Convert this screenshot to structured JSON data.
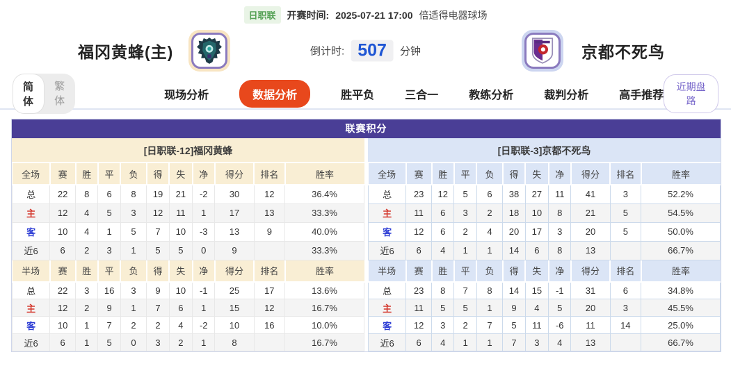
{
  "header": {
    "league_badge": "日职联",
    "kickoff_label": "开赛时间:",
    "kickoff_time": "2025-07-21 17:00",
    "venue": "倍适得电器球场",
    "home_team": "福冈黄蜂(主)",
    "away_team": "京都不死鸟",
    "countdown_label": "倒计时:",
    "countdown_value": "507",
    "countdown_unit": "分钟"
  },
  "nav": {
    "lang_simplified": "简体",
    "lang_traditional": "繁体",
    "tabs": [
      {
        "label": "现场分析",
        "active": false
      },
      {
        "label": "数据分析",
        "active": true
      },
      {
        "label": "胜平负",
        "active": false
      },
      {
        "label": "三合一",
        "active": false
      },
      {
        "label": "教练分析",
        "active": false
      },
      {
        "label": "裁判分析",
        "active": false
      },
      {
        "label": "高手推荐",
        "active": false
      }
    ],
    "recent_button": "近期盘路"
  },
  "table": {
    "title": "联赛积分",
    "full_columns": [
      "全场",
      "赛",
      "胜",
      "平",
      "负",
      "得",
      "失",
      "净",
      "得分",
      "排名",
      "胜率"
    ],
    "half_columns": [
      "半场",
      "赛",
      "胜",
      "平",
      "负",
      "得",
      "失",
      "净",
      "得分",
      "排名",
      "胜率"
    ],
    "home": {
      "team_header": "[日职联-12]福冈黄蜂",
      "full_rows": [
        [
          "总",
          "22",
          "8",
          "6",
          "8",
          "19",
          "21",
          "-2",
          "30",
          "12",
          "36.4%"
        ],
        [
          "主",
          "12",
          "4",
          "5",
          "3",
          "12",
          "11",
          "1",
          "17",
          "13",
          "33.3%"
        ],
        [
          "客",
          "10",
          "4",
          "1",
          "5",
          "7",
          "10",
          "-3",
          "13",
          "9",
          "40.0%"
        ],
        [
          "近6",
          "6",
          "2",
          "3",
          "1",
          "5",
          "5",
          "0",
          "9",
          "",
          "33.3%"
        ]
      ],
      "half_rows": [
        [
          "总",
          "22",
          "3",
          "16",
          "3",
          "9",
          "10",
          "-1",
          "25",
          "17",
          "13.6%"
        ],
        [
          "主",
          "12",
          "2",
          "9",
          "1",
          "7",
          "6",
          "1",
          "15",
          "12",
          "16.7%"
        ],
        [
          "客",
          "10",
          "1",
          "7",
          "2",
          "2",
          "4",
          "-2",
          "10",
          "16",
          "10.0%"
        ],
        [
          "近6",
          "6",
          "1",
          "5",
          "0",
          "3",
          "2",
          "1",
          "8",
          "",
          "16.7%"
        ]
      ]
    },
    "away": {
      "team_header": "[日职联-3]京都不死鸟",
      "full_rows": [
        [
          "总",
          "23",
          "12",
          "5",
          "6",
          "38",
          "27",
          "11",
          "41",
          "3",
          "52.2%"
        ],
        [
          "主",
          "11",
          "6",
          "3",
          "2",
          "18",
          "10",
          "8",
          "21",
          "5",
          "54.5%"
        ],
        [
          "客",
          "12",
          "6",
          "2",
          "4",
          "20",
          "17",
          "3",
          "20",
          "5",
          "50.0%"
        ],
        [
          "近6",
          "6",
          "4",
          "1",
          "1",
          "14",
          "6",
          "8",
          "13",
          "",
          "66.7%"
        ]
      ],
      "half_rows": [
        [
          "总",
          "23",
          "8",
          "7",
          "8",
          "14",
          "15",
          "-1",
          "31",
          "6",
          "34.8%"
        ],
        [
          "主",
          "11",
          "5",
          "5",
          "1",
          "9",
          "4",
          "5",
          "20",
          "3",
          "45.5%"
        ],
        [
          "客",
          "12",
          "3",
          "2",
          "7",
          "5",
          "11",
          "-6",
          "11",
          "14",
          "25.0%"
        ],
        [
          "近6",
          "6",
          "4",
          "1",
          "1",
          "7",
          "3",
          "4",
          "13",
          "",
          "66.7%"
        ]
      ]
    }
  },
  "colors": {
    "header_purple": "#4a3e96",
    "active_tab_orange": "#e8481c",
    "home_panel_cream": "#f9eed4",
    "away_panel_blue": "#dbe5f6",
    "countdown_blue": "#1f56d4",
    "badge_green": "#55a155",
    "home_label_red": "#d43a2f",
    "away_label_blue": "#2b3bd4",
    "recent_button_purple": "#7463c9"
  }
}
